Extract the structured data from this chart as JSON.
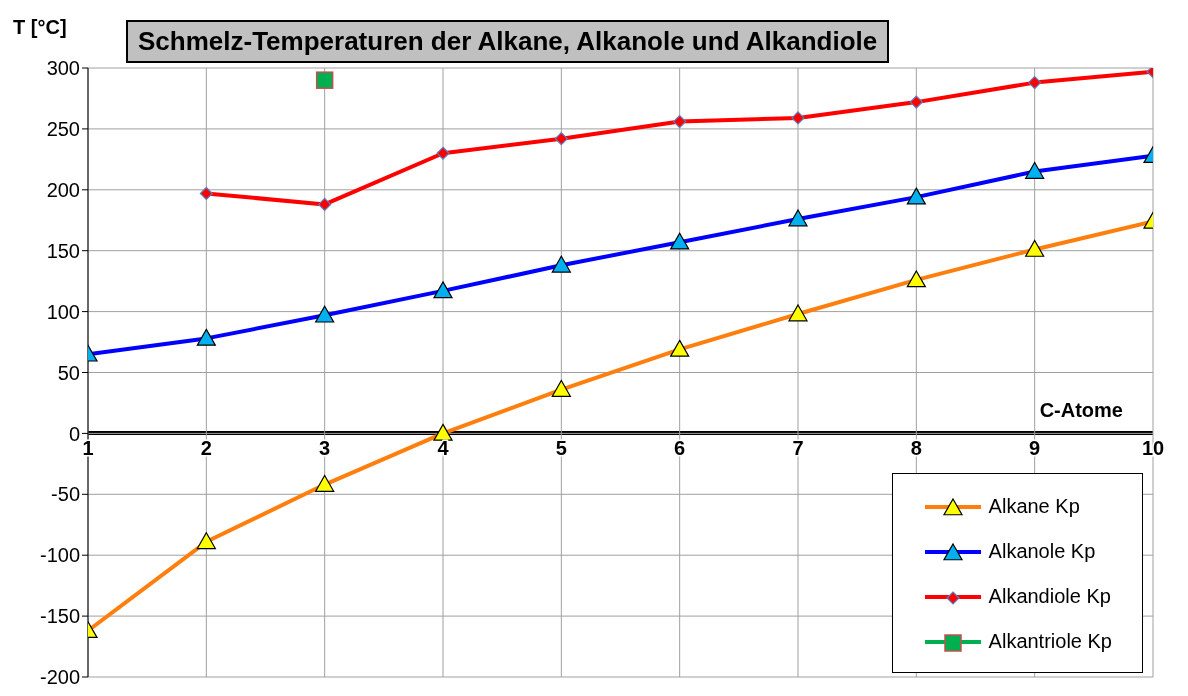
{
  "chart_data": {
    "type": "line",
    "title": "Schmelz-Temperaturen der Alkane, Alkanole und Alkandiole",
    "xlabel": "C-Atome",
    "ylabel": "T [°C]",
    "x": [
      1,
      2,
      3,
      4,
      5,
      6,
      7,
      8,
      9,
      10
    ],
    "series": [
      {
        "name": "Alkane Kp",
        "color": "#ff7f0e",
        "marker": "triangle",
        "colors": [
          "#ffff00",
          "#ffff00",
          "#ffff00",
          "#ffff00",
          "#ffff00",
          "#ffff00",
          "#ffff00",
          "#ffff00",
          "#ffff00",
          "#ffff00"
        ],
        "values": [
          -162,
          -89,
          -42,
          0,
          36,
          69,
          98,
          126,
          151,
          174
        ]
      },
      {
        "name": "Alkanole Kp",
        "color": "#0000ff",
        "marker": "triangle",
        "colors": [
          "#00b0f0",
          "#00b0f0",
          "#00b0f0",
          "#00b0f0",
          "#00b0f0",
          "#00b0f0",
          "#00b0f0",
          "#00b0f0",
          "#00b0f0",
          "#00b0f0"
        ],
        "values": [
          65,
          78,
          97,
          117,
          138,
          157,
          176,
          194,
          215,
          228
        ]
      },
      {
        "name": "Alkandiole Kp",
        "color": "#ff0000",
        "marker": "diamond",
        "colors": [
          null,
          "#ff0000",
          "#ff0000",
          "#ff0000",
          "#ff0000",
          "#ff0000",
          "#ff0000",
          "#ff0000",
          "#ff0000",
          "#ff0000"
        ],
        "values": [
          null,
          197,
          188,
          230,
          242,
          256,
          259,
          272,
          288,
          297
        ]
      },
      {
        "name": "Alkantriole Kp",
        "color": "#00b050",
        "marker": "square",
        "colors": [
          null,
          null,
          "#00b050",
          null,
          null,
          null,
          null,
          null,
          null,
          null
        ],
        "values": [
          null,
          null,
          290,
          null,
          null,
          null,
          null,
          null,
          null,
          null
        ]
      }
    ],
    "xlim": [
      1,
      10
    ],
    "xticks": [
      1,
      2,
      3,
      4,
      5,
      6,
      7,
      8,
      9,
      10
    ],
    "ylim": [
      -200,
      300
    ],
    "yticks": [
      -200,
      -150,
      -100,
      -50,
      0,
      50,
      100,
      150,
      200,
      250,
      300
    ],
    "grid": true,
    "legend": "bottom right",
    "line_style": "solid"
  }
}
